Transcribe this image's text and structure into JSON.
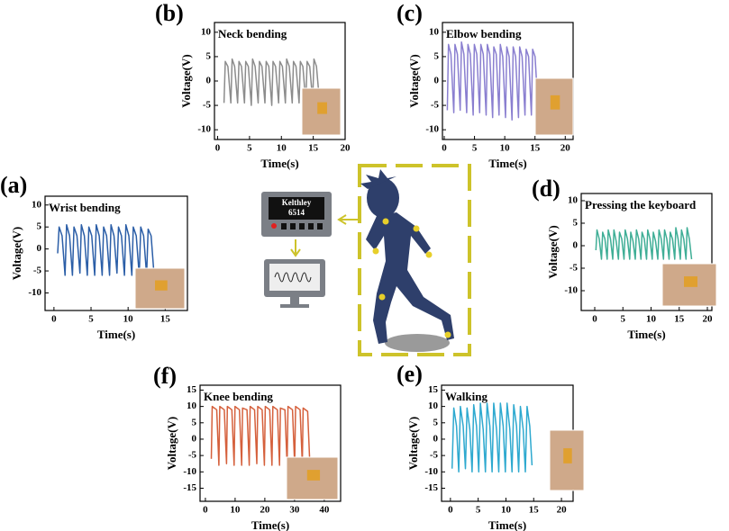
{
  "chart_data": [
    {
      "type": "line",
      "panel_label": "(a)",
      "title": "Wrist bending",
      "x_label": "Time(s)",
      "y_label": "Voltage(V)",
      "color": "#2b5ea7",
      "xlim": [
        -1.2,
        18
      ],
      "ylim": [
        -14,
        12
      ],
      "xticks": [
        0,
        5,
        10,
        15
      ],
      "yticks": [
        10,
        5,
        0,
        -5,
        -10
      ],
      "x": [
        0.5,
        0.7,
        1.1,
        1.5,
        1.7,
        2.1,
        2.5,
        2.7,
        3.1,
        3.5,
        3.7,
        4.1,
        4.5,
        4.7,
        5.1,
        5.5,
        5.7,
        6.1,
        6.5,
        6.7,
        7.1,
        7.5,
        7.7,
        8.1,
        8.5,
        8.7,
        9.1,
        9.5,
        9.7,
        10.1,
        10.5,
        10.7,
        11.1,
        11.5,
        11.7,
        12.1,
        12.5,
        12.7,
        13.1,
        13.5
      ],
      "values": [
        -1,
        5,
        3,
        -6,
        5.5,
        3,
        -6,
        5,
        3,
        -5.5,
        5.5,
        3,
        -6,
        5,
        3,
        -6,
        5.5,
        3,
        -6,
        5,
        3,
        -6,
        5.5,
        3,
        -5.5,
        5,
        3,
        -6,
        5.5,
        3,
        -6,
        5,
        3,
        -6,
        5,
        3,
        -6,
        4.5,
        3,
        -6
      ]
    },
    {
      "type": "line",
      "panel_label": "(b)",
      "title": "Neck bending",
      "x_label": "Time(s)",
      "y_label": "Voltage(V)",
      "color": "#8c8c8c",
      "xlim": [
        -0.5,
        20
      ],
      "ylim": [
        -12,
        12
      ],
      "xticks": [
        0,
        5,
        10,
        15,
        20
      ],
      "yticks": [
        10,
        5,
        0,
        -5,
        -10
      ],
      "x": [
        1.0,
        1.2,
        1.6,
        2.07,
        2.27,
        2.67,
        3.14,
        3.34,
        3.74,
        4.21,
        4.41,
        4.81,
        5.28,
        5.48,
        5.88,
        6.35,
        6.55,
        6.95,
        7.42,
        7.62,
        8.02,
        8.49,
        8.69,
        9.09,
        9.56,
        9.76,
        10.16,
        10.63,
        10.83,
        11.23,
        11.7,
        11.9,
        12.3,
        12.77,
        12.97,
        13.37,
        13.84,
        14.04,
        14.44,
        14.91,
        15.11,
        15.51,
        16.0
      ],
      "values": [
        -4.5,
        4,
        3,
        -4.5,
        4.5,
        3,
        -4.5,
        4,
        3,
        -4.5,
        4,
        3,
        -5,
        4.5,
        3,
        -4.5,
        4,
        3,
        -4.5,
        4,
        3,
        -5,
        4,
        3,
        -4.5,
        4,
        3,
        -4.5,
        4.5,
        3,
        -4.5,
        4,
        3,
        -4.5,
        4,
        3,
        -4.5,
        4,
        3,
        -4,
        4.5,
        3,
        -4.5
      ]
    },
    {
      "type": "line",
      "panel_label": "(c)",
      "title": "Elbow bending",
      "x_label": "Time(s)",
      "y_label": "Voltage(V)",
      "color": "#8a7fd0",
      "xlim": [
        -0.3,
        21.3
      ],
      "ylim": [
        -12,
        12
      ],
      "xticks": [
        0,
        5,
        10,
        15,
        20
      ],
      "yticks": [
        10,
        5,
        0,
        -5,
        -10
      ],
      "x": [
        0.5,
        0.7,
        1.1,
        1.57,
        1.77,
        2.17,
        2.64,
        2.84,
        3.24,
        3.71,
        3.91,
        4.31,
        4.78,
        4.98,
        5.38,
        5.85,
        6.05,
        6.45,
        6.92,
        7.12,
        7.52,
        7.99,
        8.19,
        8.59,
        9.06,
        9.26,
        9.66,
        10.13,
        10.33,
        10.73,
        11.2,
        11.4,
        11.8,
        12.27,
        12.47,
        12.87,
        13.34,
        13.54,
        13.94,
        14.41,
        14.61,
        15.01,
        15.5
      ],
      "values": [
        -6,
        7.5,
        5.5,
        -6.5,
        7.5,
        5.5,
        -6,
        8,
        5.5,
        -6.5,
        7.5,
        5.5,
        -7,
        7.5,
        5.5,
        -6.5,
        7.5,
        5.5,
        -7,
        7.5,
        5.5,
        -7.5,
        7,
        5.5,
        -7,
        7.5,
        5,
        -7.5,
        7,
        5,
        -8,
        7,
        5,
        -7.5,
        7,
        5,
        -7,
        6.5,
        5,
        -7,
        6.5,
        5,
        -5.5
      ]
    },
    {
      "type": "line",
      "panel_label": "(d)",
      "title": "Pressing the keyboard",
      "x_label": "Time(s)",
      "y_label": "Voltage(V)",
      "color": "#3fae96",
      "xlim": [
        -2.4,
        20.8
      ],
      "ylim": [
        -14.4,
        11.6
      ],
      "xticks": [
        0,
        5,
        10,
        15,
        20
      ],
      "yticks": [
        10,
        5,
        0,
        -5,
        -10
      ],
      "x": [
        0.2,
        0.4,
        0.8,
        1.2,
        1.4,
        1.8,
        2.2,
        2.4,
        2.8,
        3.2,
        3.4,
        3.8,
        4.2,
        4.4,
        4.8,
        5.2,
        5.4,
        5.8,
        6.2,
        6.4,
        6.8,
        7.2,
        7.4,
        7.8,
        8.2,
        8.4,
        8.8,
        9.2,
        9.4,
        9.8,
        10.2,
        10.4,
        10.8,
        11.2,
        11.4,
        11.8,
        12.2,
        12.4,
        12.8,
        13.2,
        13.4,
        13.8,
        14.2,
        14.4,
        14.8,
        15.2,
        15.4,
        15.8,
        16.2,
        16.4,
        16.8,
        17.2
      ],
      "values": [
        -1,
        3.5,
        1.5,
        -3,
        3,
        1.5,
        -3,
        3.5,
        1.5,
        -3,
        3.5,
        1,
        -3,
        3,
        1.5,
        -3,
        3.5,
        1.5,
        -3,
        3,
        1,
        -3,
        3.5,
        1.5,
        -3,
        3,
        1.5,
        -3,
        3.5,
        1.5,
        -3,
        3,
        1,
        -3,
        3.5,
        1.5,
        -3,
        3.5,
        1.5,
        -3,
        3,
        1.5,
        -3,
        4,
        1.5,
        -3,
        3.5,
        1.5,
        -3,
        4,
        1.5,
        -3
      ]
    },
    {
      "type": "line",
      "panel_label": "(e)",
      "title": "Walking",
      "x_label": "Time(s)",
      "y_label": "Voltage(V)",
      "color": "#2ea9cf",
      "xlim": [
        -1.6,
        22.1
      ],
      "ylim": [
        -19,
        16.5
      ],
      "xticks": [
        0,
        5,
        10,
        15,
        20
      ],
      "yticks": [
        15,
        10,
        5,
        0,
        -5,
        -10,
        -15
      ],
      "x": [
        0.3,
        0.6,
        1.1,
        1.5,
        1.8,
        2.3,
        2.7,
        3,
        3.5,
        3.9,
        4.2,
        4.7,
        5.1,
        5.4,
        5.9,
        6.3,
        6.6,
        7.1,
        7.5,
        7.8,
        8.3,
        8.7,
        9,
        9.5,
        9.9,
        10.2,
        10.7,
        11.1,
        11.4,
        11.9,
        12.3,
        12.6,
        13.1,
        13.5,
        13.8,
        14.3,
        14.7
      ],
      "values": [
        -9,
        9.5,
        4,
        -10,
        10,
        4,
        -9,
        9.5,
        3,
        -10,
        10.5,
        4,
        -10,
        11,
        3,
        -10,
        11,
        4,
        -10,
        11,
        3,
        -10,
        11,
        4,
        -10,
        11,
        3,
        -10,
        10.5,
        4,
        -10,
        10,
        3,
        -10,
        10,
        4,
        -8
      ]
    },
    {
      "type": "line",
      "panel_label": "(f)",
      "title": "Knee bending",
      "x_label": "Time(s)",
      "y_label": "Voltage(V)",
      "color": "#d5603c",
      "xlim": [
        -1.8,
        45.5
      ],
      "ylim": [
        -19,
        16.5
      ],
      "xticks": [
        0,
        10,
        20,
        30,
        40
      ],
      "yticks": [
        15,
        10,
        5,
        0,
        -5,
        -10,
        -15
      ],
      "x": [
        2,
        2.3,
        3.8,
        4.55,
        4.85,
        6.35,
        7.1,
        7.4,
        8.9,
        9.65,
        9.95,
        11.45,
        12.2,
        12.5,
        14,
        14.75,
        15.05,
        16.55,
        17.3,
        17.6,
        19.1,
        19.85,
        20.15,
        21.65,
        22.4,
        22.7,
        24.2,
        24.95,
        25.25,
        26.75,
        27.5,
        27.8,
        29.3,
        30.05,
        30.35,
        31.85,
        32.6,
        32.9,
        34.4,
        35.15
      ],
      "values": [
        -6,
        10,
        9,
        -8,
        10,
        9,
        -7.5,
        10,
        9,
        -8,
        10,
        9,
        -8,
        9.5,
        9,
        -8,
        10,
        9,
        -7.5,
        10,
        9,
        -8,
        10,
        9,
        -8,
        10,
        9,
        -8,
        9.5,
        9,
        -8,
        10,
        9,
        -8,
        10,
        9,
        -7.5,
        9.5,
        8.5,
        -8
      ]
    }
  ],
  "diagram": {
    "meter_name": "Kelthley",
    "meter_model": "6514"
  }
}
